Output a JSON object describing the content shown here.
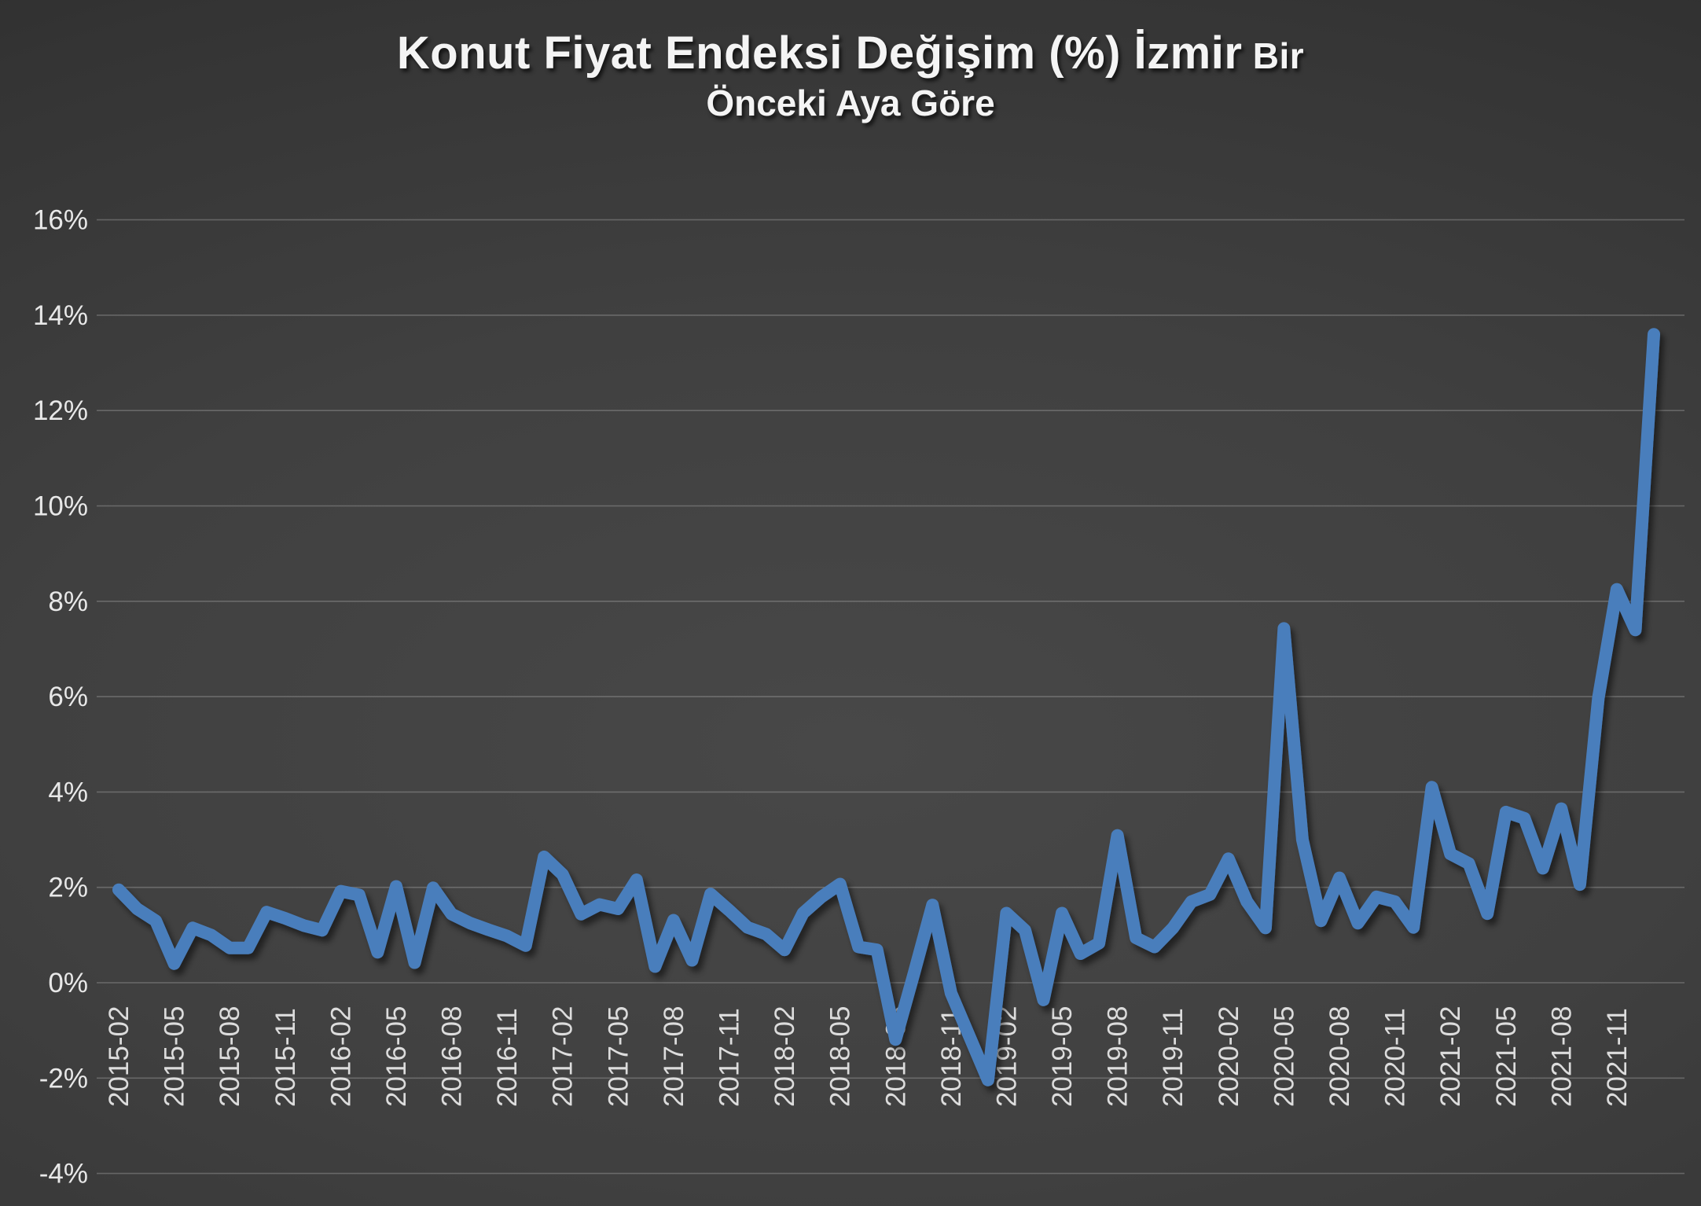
{
  "title": {
    "line1_main": "Konut Fiyat Endeksi Değişim (%) İzmir",
    "line1_suffix": " Bir",
    "line2": "Önceki Aya Göre"
  },
  "chart_data": {
    "type": "line",
    "title": "Konut Fiyat Endeksi Değişim (%) İzmir Bir Önceki Aya Göre",
    "xlabel": "",
    "ylabel": "",
    "ylim": [
      -4,
      16
    ],
    "grid": true,
    "legend": false,
    "series_color": "#4a7ebc",
    "x_tick_interval": 3,
    "y_ticks": {
      "values": [
        16,
        14,
        12,
        10,
        8,
        6,
        4,
        2,
        0,
        -2,
        -4
      ],
      "labels": [
        "16%",
        "14%",
        "12%",
        "10%",
        "8%",
        "6%",
        "4%",
        "2%",
        "0%",
        "-2%",
        "-4%"
      ]
    },
    "x": [
      "2015-02",
      "2015-03",
      "2015-04",
      "2015-05",
      "2015-06",
      "2015-07",
      "2015-08",
      "2015-09",
      "2015-10",
      "2015-11",
      "2015-12",
      "2016-01",
      "2016-02",
      "2016-03",
      "2016-04",
      "2016-05",
      "2016-06",
      "2016-07",
      "2016-08",
      "2016-09",
      "2016-10",
      "2016-11",
      "2016-12",
      "2017-01",
      "2017-02",
      "2017-03",
      "2017-04",
      "2017-05",
      "2017-06",
      "2017-07",
      "2017-08",
      "2017-09",
      "2017-10",
      "2017-11",
      "2017-12",
      "2018-01",
      "2018-02",
      "2018-03",
      "2018-04",
      "2018-05",
      "2018-06",
      "2018-07",
      "2018-08",
      "2018-09",
      "2018-10",
      "2018-11",
      "2018-12",
      "2019-01",
      "2019-02",
      "2019-03",
      "2019-04",
      "2019-05",
      "2019-06",
      "2019-07",
      "2019-08",
      "2019-09",
      "2019-10",
      "2019-11",
      "2019-12",
      "2020-01",
      "2020-02",
      "2020-03",
      "2020-04",
      "2020-05",
      "2020-06",
      "2020-07",
      "2020-08",
      "2020-09",
      "2020-10",
      "2020-11",
      "2020-12",
      "2021-01",
      "2021-02",
      "2021-03",
      "2021-04",
      "2021-05",
      "2021-06",
      "2021-07",
      "2021-08",
      "2021-09",
      "2021-10",
      "2021-11",
      "2021-12",
      "2022-01"
    ],
    "values": [
      1.95,
      1.55,
      1.3,
      0.4,
      1.15,
      1.0,
      0.73,
      0.73,
      1.48,
      1.35,
      1.2,
      1.1,
      1.92,
      1.84,
      0.64,
      2.02,
      0.42,
      1.99,
      1.44,
      1.25,
      1.11,
      0.98,
      0.78,
      2.64,
      2.27,
      1.44,
      1.64,
      1.55,
      2.16,
      0.34,
      1.31,
      0.47,
      1.86,
      1.52,
      1.16,
      1.02,
      0.69,
      1.46,
      1.8,
      2.07,
      0.75,
      0.69,
      -1.19,
      0.2,
      1.63,
      -0.22,
      -1.13,
      -2.04,
      1.46,
      1.1,
      -0.36,
      1.46,
      0.61,
      0.83,
      3.09,
      0.94,
      0.75,
      1.15,
      1.7,
      1.85,
      2.6,
      1.7,
      1.15,
      7.43,
      3.0,
      1.3,
      2.2,
      1.25,
      1.8,
      1.7,
      1.16,
      4.1,
      2.7,
      2.5,
      1.45,
      3.58,
      3.45,
      2.4,
      3.65,
      2.06,
      5.97,
      8.25,
      7.4,
      13.6
    ]
  }
}
